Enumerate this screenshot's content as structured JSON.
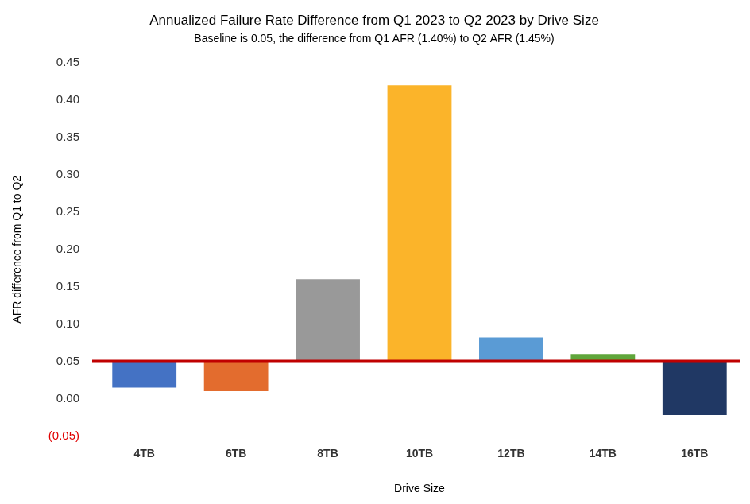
{
  "chart_data": {
    "type": "bar",
    "title": "Annualized Failure Rate Difference from Q1 2023 to Q2 2023 by Drive Size",
    "subtitle": "Baseline is 0.05, the difference from Q1 AFR (1.40%) to Q2 AFR (1.45%)",
    "x_label": "Drive Size",
    "y_label": "AFR difference from Q1 to Q2",
    "categories": [
      "4TB",
      "6TB",
      "8TB",
      "10TB",
      "12TB",
      "14TB",
      "16TB"
    ],
    "values": [
      0.015,
      0.01,
      0.16,
      0.42,
      0.082,
      0.06,
      -0.022
    ],
    "colors": [
      "#4472c4",
      "#e36c2e",
      "#999999",
      "#fbb42a",
      "#5a9bd5",
      "#5fa63b",
      "#203864"
    ],
    "baseline": 0.05,
    "ylim": [
      -0.05,
      0.45
    ],
    "yticks": [
      {
        "value": -0.05,
        "label": "(0.05)"
      },
      {
        "value": 0,
        "label": "0.00"
      },
      0.05,
      {
        "value": 0.1,
        "label": "0.10"
      },
      0.15,
      {
        "value": 0.2,
        "label": "0.20"
      },
      0.25,
      {
        "value": 0.3,
        "label": "0.30"
      },
      0.35,
      {
        "value": 0.4,
        "label": "0.40"
      },
      0.45
    ],
    "grid": false
  }
}
